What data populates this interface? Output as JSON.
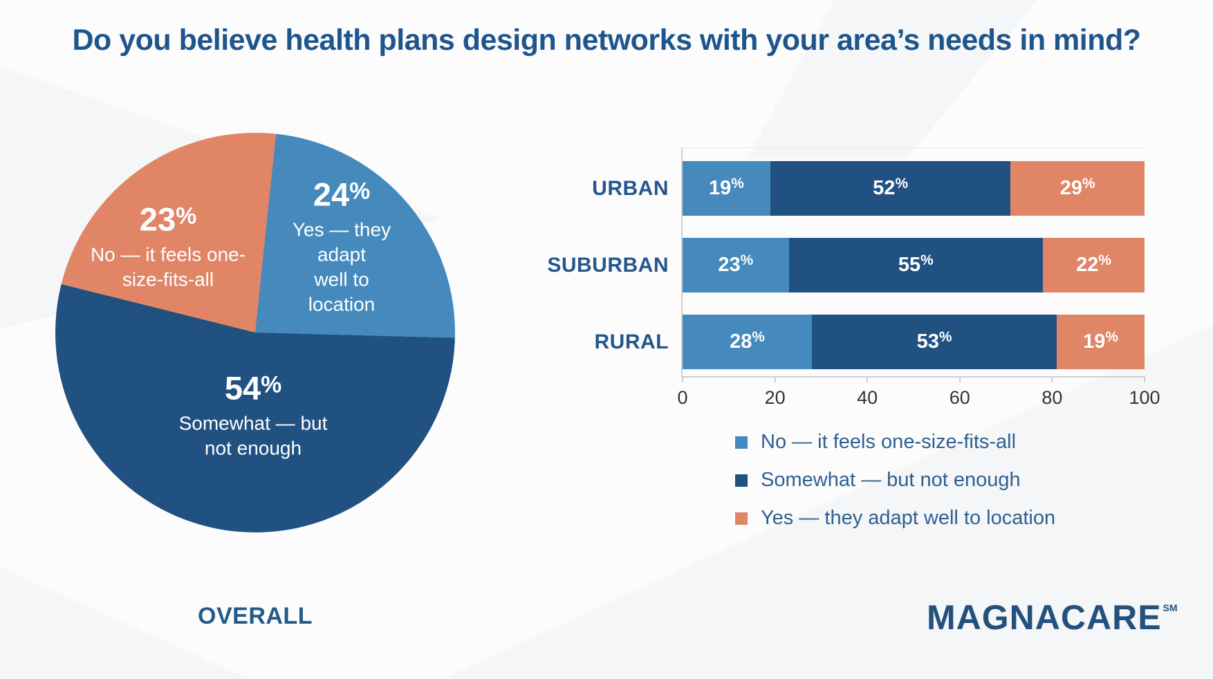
{
  "title": "Do you believe health plans design networks with your area’s needs in mind?",
  "colors": {
    "light_blue": "#4589bd",
    "dark_blue": "#205181",
    "orange": "#e08566",
    "heading_blue": "#1e558c",
    "legend_text": "#2e6091",
    "logo_blue": "#24507d",
    "axis_line": "#cfcfcf",
    "axis_text": "#333333"
  },
  "pie": {
    "footer_label": "OVERALL",
    "labels": [
      {
        "pct": "23%",
        "lines": [
          "No — it feels one-",
          "size-fits-all"
        ]
      },
      {
        "pct": "24%",
        "lines": [
          "Yes — they adapt",
          "well to location"
        ]
      },
      {
        "pct": "54%",
        "lines": [
          "Somewhat — but",
          "not enough"
        ]
      }
    ]
  },
  "legend": [
    {
      "label": "No — it feels one-size-fits-all",
      "color": "#4589bd"
    },
    {
      "label": "Somewhat — but not enough",
      "color": "#205181"
    },
    {
      "label": "Yes — they adapt well to location",
      "color": "#e08566"
    }
  ],
  "logo": {
    "text": "MAGNACARE",
    "mark": "SM"
  },
  "chart_data": [
    {
      "type": "pie",
      "title": "OVERALL",
      "direction": "clockwise",
      "start_angle_deg": 6,
      "slices": [
        {
          "label": "Yes — they adapt well to location",
          "value": 24,
          "color": "#4589bd"
        },
        {
          "label": "Somewhat — but not enough",
          "value": 54,
          "color": "#205181"
        },
        {
          "label": "No — it feels one-size-fits-all",
          "value": 23,
          "color": "#e08566"
        }
      ]
    },
    {
      "type": "bar",
      "orientation": "horizontal-stacked",
      "categories": [
        "URBAN",
        "SUBURBAN",
        "RURAL"
      ],
      "series": [
        {
          "name": "No — it feels one-size-fits-all",
          "color": "#4589bd",
          "values": [
            19,
            23,
            28
          ]
        },
        {
          "name": "Somewhat — but not enough",
          "color": "#205181",
          "values": [
            52,
            55,
            53
          ]
        },
        {
          "name": "Yes — they adapt well to location",
          "color": "#e08566",
          "values": [
            29,
            22,
            19
          ]
        }
      ],
      "xlim": [
        0,
        100
      ],
      "xticks": [
        0,
        20,
        40,
        60,
        80,
        100
      ],
      "value_label_format": "{v}%",
      "grid": false,
      "legend_position": "below-right"
    }
  ]
}
